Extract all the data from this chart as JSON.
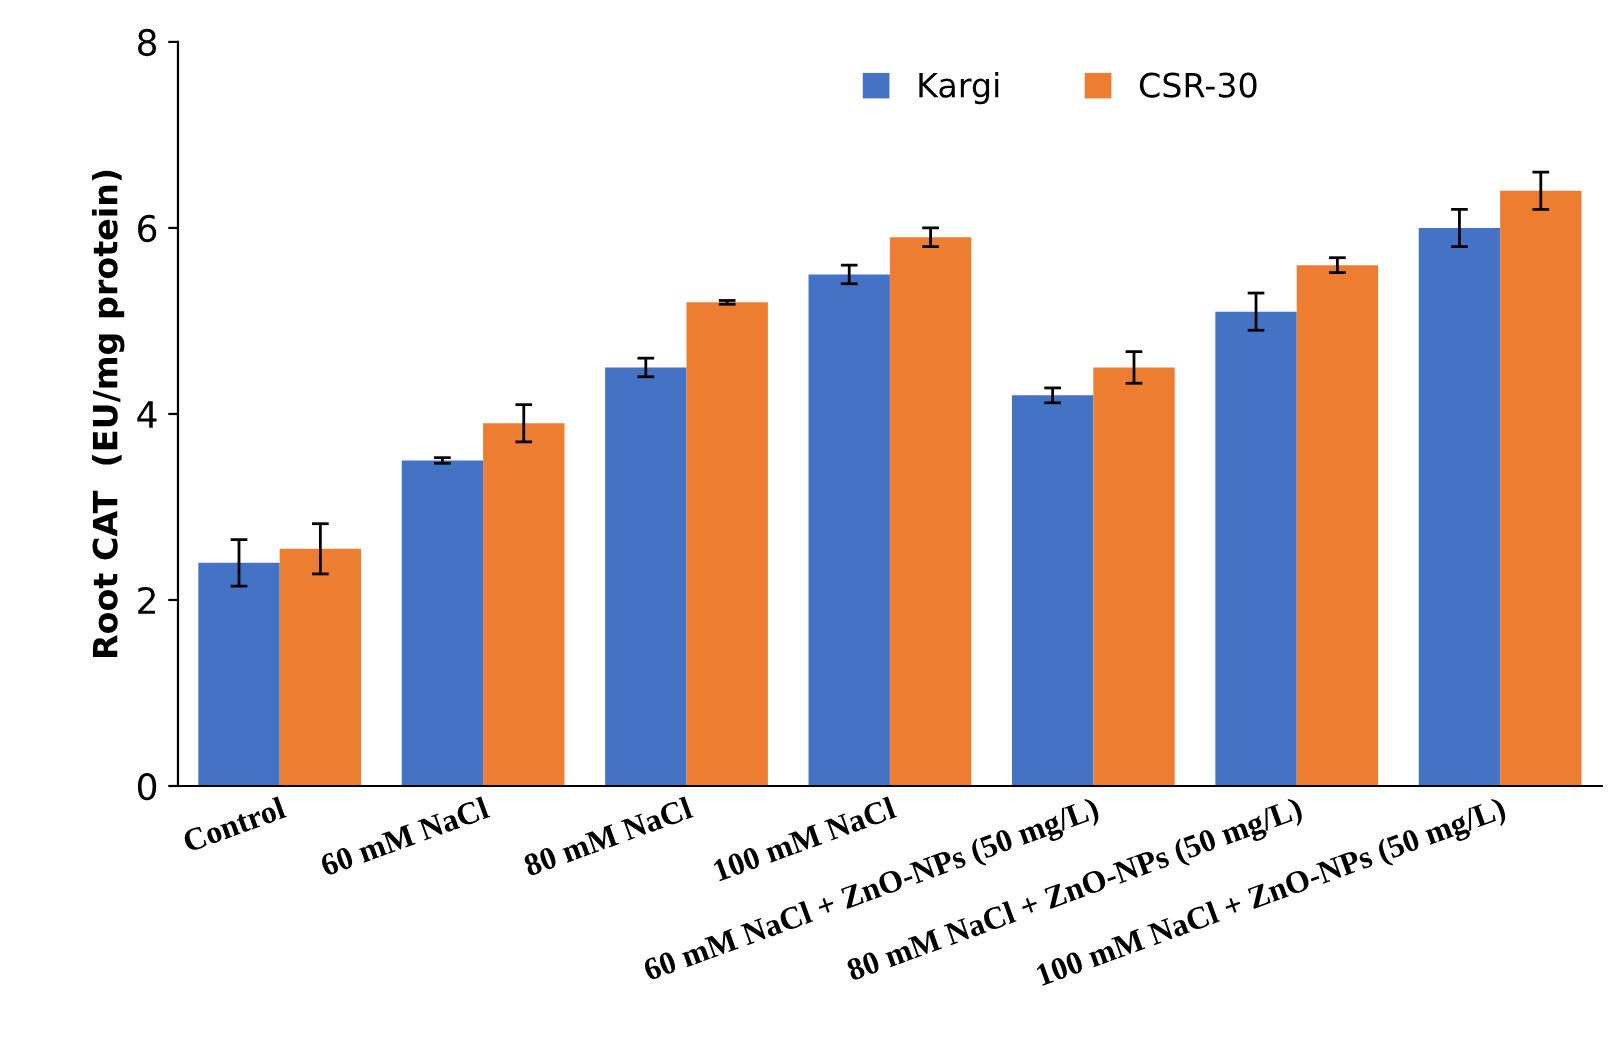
{
  "chart_data": {
    "type": "bar",
    "ylabel": "Root CAT  (EU/mg protein)",
    "categories": [
      "Control",
      "60 mM NaCl",
      "80 mM NaCl",
      "100 mM NaCl",
      "60 mM NaCl + ZnO-NPs (50 mg/L)",
      "80 mM NaCl + ZnO-NPs (50 mg/L)",
      "100 mM NaCl + ZnO-NPs (50 mg/L)"
    ],
    "series": [
      {
        "name": "Kargi",
        "color": "#4472c4",
        "values": [
          2.4,
          3.5,
          4.5,
          5.5,
          4.2,
          5.1,
          6.0
        ],
        "errors": [
          0.25,
          0.03,
          0.1,
          0.1,
          0.08,
          0.2,
          0.2
        ]
      },
      {
        "name": "CSR-30",
        "color": "#ed7d31",
        "values": [
          2.55,
          3.9,
          5.2,
          5.9,
          4.5,
          5.6,
          6.4
        ],
        "errors": [
          0.27,
          0.2,
          0.02,
          0.1,
          0.17,
          0.08,
          0.2
        ]
      }
    ],
    "ylim": [
      0,
      8
    ],
    "yticks": [
      0,
      2,
      4,
      6,
      8
    ],
    "grid": false,
    "legend": "top right"
  }
}
